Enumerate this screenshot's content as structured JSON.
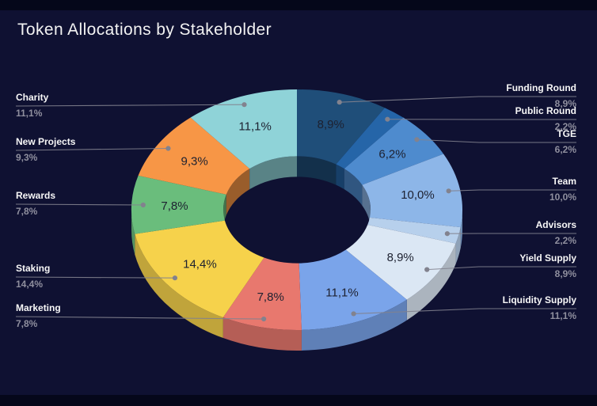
{
  "title": "Token Allocations by Stakeholder",
  "colors": {
    "background": "#0f1132",
    "frame_bars": "#05071a",
    "title_text": "#f2f2f2",
    "callout_name_text": "#f7f7f7",
    "callout_value_text": "#8f8f9e",
    "leader_line": "#82828e",
    "slice_label_text": "#1d2130"
  },
  "chart_data": {
    "type": "pie",
    "variant": "3d-donut",
    "title": "Token Allocations by Stakeholder",
    "unit": "%",
    "decimal_separator": ",",
    "start_angle_deg": 0,
    "direction": "clockwise",
    "legend_position": "callouts-left-right",
    "slices": [
      {
        "label": "Funding Round",
        "value": 8.9,
        "display": "8,9%",
        "color": "#1f4e79"
      },
      {
        "label": "Public Round",
        "value": 2.2,
        "display": "2,2%",
        "color": "#2565a8"
      },
      {
        "label": "TGE",
        "value": 6.2,
        "display": "6,2%",
        "color": "#4e8bce"
      },
      {
        "label": "Team",
        "value": 10.0,
        "display": "10,0%",
        "color": "#8db6e8"
      },
      {
        "label": "Advisors",
        "value": 2.2,
        "display": "2,2%",
        "color": "#b7d0ec"
      },
      {
        "label": "Yield Supply",
        "value": 8.9,
        "display": "8,9%",
        "color": "#dbe7f4"
      },
      {
        "label": "Liquidity Supply",
        "value": 11.1,
        "display": "11,1%",
        "color": "#7aa4ea"
      },
      {
        "label": "Marketing",
        "value": 7.8,
        "display": "7,8%",
        "color": "#e8786e"
      },
      {
        "label": "Staking",
        "value": 14.4,
        "display": "14,4%",
        "color": "#f6d24b"
      },
      {
        "label": "Rewards",
        "value": 7.8,
        "display": "7,8%",
        "color": "#6abd7c"
      },
      {
        "label": "New Projects",
        "value": 9.3,
        "display": "9,3%",
        "color": "#f79646"
      },
      {
        "label": "Charity",
        "value": 11.1,
        "display": "11,1%",
        "color": "#8fd3d8"
      }
    ]
  }
}
